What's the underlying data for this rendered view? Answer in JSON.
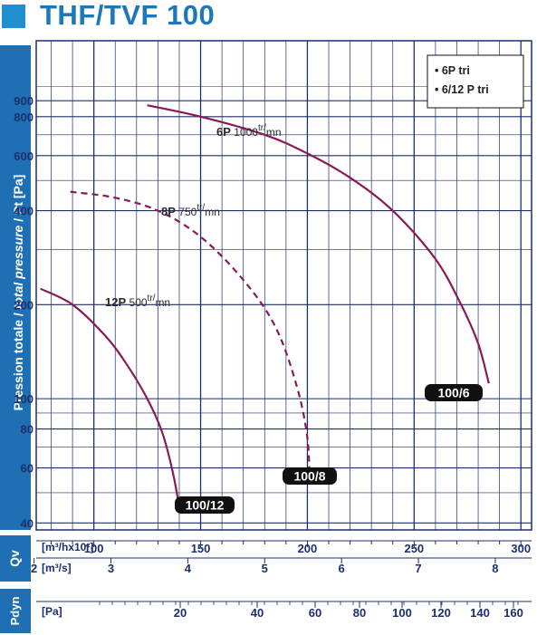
{
  "title": "THF/TVF 100",
  "colors": {
    "accent": "#1f8fd1",
    "title": "#1b78bd",
    "panel": "#1e6fb3",
    "grid": "#1d2f6b",
    "curve": "#8a1a55",
    "badge": "#111111"
  },
  "chart_data": {
    "type": "line",
    "title": "THF/TVF 100",
    "ylabel_plain": "Pression totale / ",
    "ylabel_italic": "total pressure",
    "ylabel_suffix": " / Pt [Pa]",
    "yscale": "log",
    "ylim": [
      38,
      1400
    ],
    "y_ticks": [
      40,
      60,
      80,
      100,
      200,
      400,
      600,
      800,
      900
    ],
    "xlabel_qv_1": "[m³/hx10²]",
    "xlabel_qv_2": "[m³/s]",
    "xlim": [
      73,
      305
    ],
    "x_ticks_m3h": [
      100,
      150,
      200,
      250,
      300
    ],
    "x_ticks_m3s": [
      2,
      3,
      4,
      5,
      6,
      7,
      8
    ],
    "qv_label": "Qv",
    "pdyn_label": "Pdyn",
    "pdyn_unit": "[Pa]",
    "pdyn_ticks": [
      20,
      40,
      60,
      80,
      100,
      120,
      140,
      160
    ],
    "legend": [
      "• 6P tri",
      "• 6/12 P tri"
    ],
    "legend_position": "top-right",
    "series": [
      {
        "name": "6P 1000 tr/mn",
        "label_bold": "6P",
        "label_speed": "1000",
        "label_sup": "tr/",
        "label_unit": "mn",
        "badge": "100/6",
        "dashed": false,
        "x": [
          125,
          150,
          180,
          200,
          220,
          240,
          260,
          272,
          280,
          285
        ],
        "y": [
          870,
          800,
          700,
          610,
          510,
          400,
          280,
          200,
          150,
          112
        ]
      },
      {
        "name": "8P 750 tr/mn",
        "label_bold": "8P",
        "label_speed": "750",
        "label_sup": "tr/",
        "label_unit": "mn",
        "badge": "100/8",
        "dashed": true,
        "x": [
          89,
          110,
          130,
          150,
          170,
          185,
          195,
          200,
          201
        ],
        "y": [
          460,
          440,
          400,
          330,
          240,
          170,
          110,
          75,
          54
        ]
      },
      {
        "name": "12P 500 tr/mn",
        "label_bold": "12P",
        "label_speed": "500",
        "label_sup": "tr/",
        "label_unit": "mn",
        "badge": "100/12",
        "dashed": false,
        "x": [
          75,
          90,
          105,
          115,
          125,
          132,
          137,
          140
        ],
        "y": [
          225,
          200,
          160,
          130,
          100,
          78,
          58,
          45
        ]
      }
    ]
  }
}
